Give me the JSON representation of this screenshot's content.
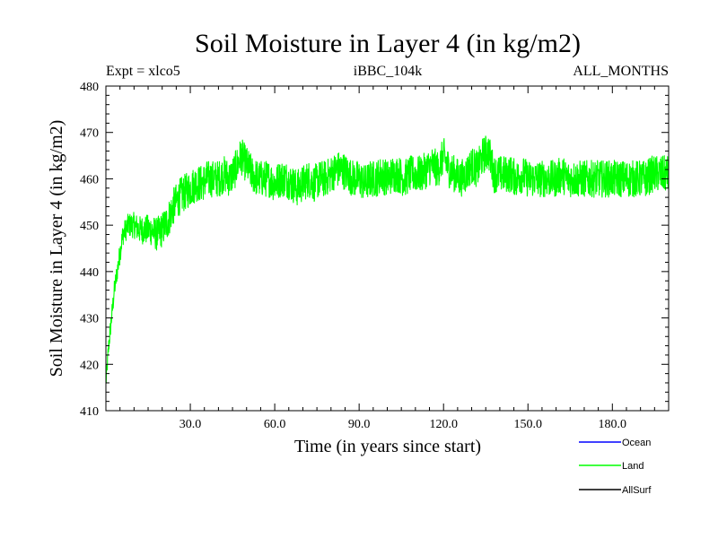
{
  "chart_data": {
    "type": "line",
    "title": "Soil Moisture in Layer 4 (in kg/m2)",
    "subtitle_left": "Expt = xlco5",
    "subtitle_center": "iBBC_104k",
    "subtitle_right": "ALL_MONTHS",
    "xlabel": "Time (in years since start)",
    "ylabel": "Soil Moisture in Layer 4 (in kg/m2)",
    "xlim": [
      0,
      200
    ],
    "ylim": [
      410,
      480
    ],
    "x_ticks": [
      30,
      60,
      90,
      120,
      150,
      180
    ],
    "x_tick_labels": [
      "30.0",
      "60.0",
      "90.0",
      "120.0",
      "150.0",
      "180.0"
    ],
    "y_ticks": [
      410,
      420,
      430,
      440,
      450,
      460,
      470,
      480
    ],
    "y_tick_labels": [
      "410",
      "420",
      "430",
      "440",
      "450",
      "460",
      "470",
      "480"
    ],
    "series": [
      {
        "name": "Ocean",
        "color": "#0000ff",
        "values": []
      },
      {
        "name": "Land",
        "color": "#00ff00",
        "x": [
          0,
          1,
          2,
          3,
          4,
          5,
          6,
          8,
          10,
          12,
          14,
          16,
          18,
          20,
          22,
          24,
          26,
          28,
          30,
          32,
          34,
          36,
          38,
          40,
          42,
          44,
          46,
          48,
          50,
          52,
          54,
          56,
          58,
          60,
          62,
          64,
          66,
          68,
          70,
          72,
          74,
          76,
          78,
          80,
          82,
          84,
          86,
          88,
          90,
          92,
          94,
          96,
          98,
          100,
          102,
          104,
          106,
          108,
          110,
          112,
          114,
          116,
          118,
          120,
          122,
          124,
          126,
          128,
          130,
          132,
          134,
          136,
          138,
          140,
          142,
          144,
          146,
          148,
          150,
          152,
          154,
          156,
          158,
          160,
          162,
          164,
          166,
          168,
          170,
          172,
          174,
          176,
          178,
          180,
          182,
          184,
          186,
          188,
          190,
          192,
          194,
          196,
          198,
          200
        ],
        "values": [
          416,
          424,
          430,
          436,
          440,
          444,
          448,
          450,
          450,
          449,
          449,
          449,
          448,
          449,
          451,
          454,
          456,
          457,
          458,
          459,
          459,
          460,
          460,
          460,
          461,
          460,
          462,
          465,
          463,
          461,
          460,
          460,
          460,
          459,
          460,
          460,
          459,
          458,
          459,
          460,
          459,
          460,
          460,
          461,
          462,
          462,
          461,
          460,
          460,
          459,
          460,
          460,
          461,
          460,
          461,
          461,
          460,
          461,
          461,
          461,
          462,
          463,
          462,
          465,
          462,
          461,
          460,
          461,
          463,
          462,
          465,
          466,
          461,
          461,
          461,
          461,
          460,
          461,
          460,
          460,
          460,
          460,
          460,
          460,
          461,
          460,
          460,
          460,
          460,
          460,
          460,
          460,
          460,
          460,
          460,
          460,
          460,
          460,
          460,
          460,
          461,
          461,
          461,
          461
        ],
        "variability": 4
      },
      {
        "name": "AllSurf",
        "color": "#000000",
        "values": []
      }
    ],
    "legend": [
      "Ocean",
      "Land",
      "AllSurf"
    ],
    "legend_position": "below-right"
  }
}
